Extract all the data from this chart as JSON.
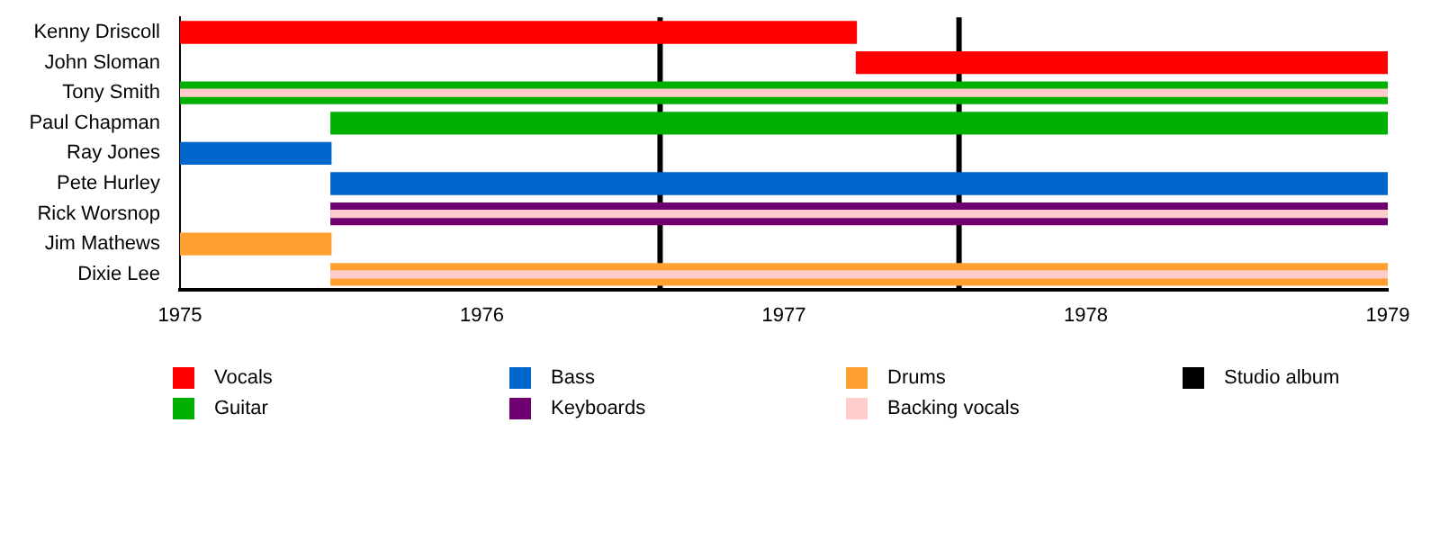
{
  "chart_data": {
    "type": "bar",
    "orientation": "horizontal",
    "categories": [
      "Kenny Driscoll",
      "John Sloman",
      "Tony Smith",
      "Paul Chapman",
      "Ray Jones",
      "Pete Hurley",
      "Rick Worsnop",
      "Jim Mathews",
      "Dixie Lee"
    ],
    "series": [
      {
        "name": "Vocals",
        "color": "#ff0000",
        "values": [
          2.24,
          1.76,
          null,
          null,
          null,
          null,
          null,
          null,
          null
        ],
        "base": [
          1975,
          1977.24,
          null,
          null,
          null,
          null,
          null,
          null,
          null
        ]
      },
      {
        "name": "Guitar",
        "color": "#00b000",
        "values": [
          null,
          null,
          4,
          3.5,
          null,
          null,
          null,
          null,
          null
        ],
        "base": [
          null,
          null,
          1975,
          1975.5,
          null,
          null,
          null,
          null,
          null
        ]
      },
      {
        "name": "Bass",
        "color": "#0066cc",
        "values": [
          null,
          null,
          null,
          null,
          0.5,
          3.5,
          null,
          null,
          null
        ],
        "base": [
          null,
          null,
          null,
          null,
          1975,
          1975.5,
          null,
          null,
          null
        ]
      },
      {
        "name": "Keyboards",
        "color": "#700070",
        "values": [
          null,
          null,
          null,
          null,
          null,
          null,
          3.5,
          null,
          null
        ],
        "base": [
          null,
          null,
          null,
          null,
          null,
          null,
          1975.5,
          null,
          null
        ]
      },
      {
        "name": "Drums",
        "color": "#ffa030",
        "values": [
          null,
          null,
          null,
          null,
          null,
          null,
          null,
          0.5,
          3.5
        ],
        "base": [
          null,
          null,
          null,
          null,
          null,
          null,
          null,
          1975,
          1975.5
        ]
      },
      {
        "name": "Backing vocals",
        "color": "#ffcccc",
        "values": [
          null,
          null,
          4,
          null,
          null,
          null,
          3.5,
          null,
          3.5
        ],
        "base": [
          null,
          null,
          1975,
          null,
          null,
          null,
          1975.5,
          null,
          1975.5
        ]
      }
    ],
    "ref_lines": [
      {
        "axis": "x",
        "value": 1976.59,
        "label": "Studio album",
        "color": "#000000"
      },
      {
        "axis": "x",
        "value": 1977.58,
        "color": "#000000"
      }
    ],
    "xlim": [
      1975,
      1979
    ],
    "xticks": [
      1975,
      1976,
      1977,
      1978,
      1979
    ],
    "grid": false,
    "legend": "bottom"
  }
}
